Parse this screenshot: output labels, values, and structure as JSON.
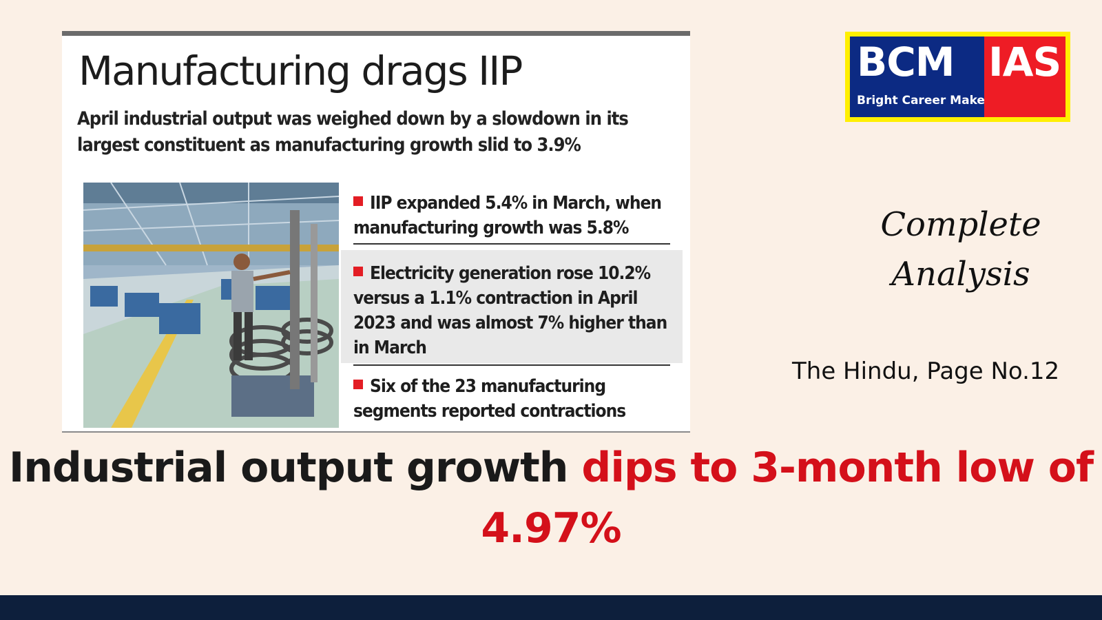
{
  "clipping": {
    "title": "Manufacturing drags IIP",
    "subtitle": "April industrial output was weighed down by a slowdown in its largest constituent as manufacturing growth slid to 3.9%",
    "points": [
      "IIP expanded 5.4% in March, when manufacturing growth was 5.8%",
      "Electricity generation rose 10.2% versus a 1.1% contraction in April 2023 and was almost 7% higher than in March",
      "Six of the 23 manufacturing segments reported contractions"
    ]
  },
  "logo": {
    "left_text": "BCM",
    "right_text": "IAS",
    "tagline": "Bright Career Maker",
    "colors": {
      "border": "#ffef00",
      "left": "#0c2a83",
      "right": "#ee1c25"
    }
  },
  "side": {
    "complete_line1": "Complete",
    "complete_line2": "Analysis",
    "source": "The Hindu, Page No.12"
  },
  "headline": {
    "black_part": "Industrial output growth",
    "red_part": "dips to 3-month low of 4.97%",
    "colors": {
      "black": "#1a1a1a",
      "red": "#d4101a"
    }
  },
  "icons": [
    "factory-photo",
    "bullet-square-icon"
  ]
}
